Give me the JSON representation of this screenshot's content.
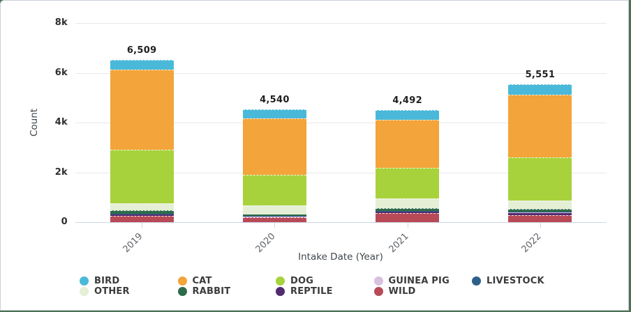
{
  "chart_data": {
    "type": "bar",
    "stacked": true,
    "title": "",
    "xlabel": "Intake Date (Year)",
    "ylabel": "Count",
    "categories": [
      "2019",
      "2020",
      "2021",
      "2022"
    ],
    "totals": [
      6509,
      4540,
      4492,
      5551
    ],
    "totals_display": [
      "6,509",
      "4,540",
      "4,492",
      "5,551"
    ],
    "ylim": [
      0,
      8000
    ],
    "yticks": [
      {
        "label": "8k",
        "value": 8000
      },
      {
        "label": "6k",
        "value": 6000
      },
      {
        "label": "4k",
        "value": 4000
      },
      {
        "label": "2k",
        "value": 2000
      },
      {
        "label": "0",
        "value": 0
      }
    ],
    "grid": true,
    "legend_position": "bottom",
    "stack_order_bottom_to_top": [
      "WILD",
      "REPTILE",
      "GUINEA PIG",
      "LIVESTOCK",
      "RABBIT",
      "OTHER",
      "DOG",
      "CAT",
      "BIRD"
    ],
    "series": [
      {
        "name": "BIRD",
        "color": "#4ab9d9",
        "values": [
          374,
          367,
          392,
          446
        ]
      },
      {
        "name": "CAT",
        "color": "#f3a43a",
        "values": [
          3220,
          2258,
          1905,
          2509
        ]
      },
      {
        "name": "DOG",
        "color": "#a8d23c",
        "values": [
          2155,
          1250,
          1255,
          1735
        ]
      },
      {
        "name": "GUINEA PIG",
        "color": "#d7c0e0",
        "values": [
          20,
          15,
          20,
          55
        ]
      },
      {
        "name": "LIVESTOCK",
        "color": "#2e5f8a",
        "values": [
          10,
          5,
          5,
          6
        ]
      },
      {
        "name": "OTHER",
        "color": "#e4efd6",
        "values": [
          280,
          365,
          385,
          325
        ]
      },
      {
        "name": "RABBIT",
        "color": "#2e6b4a",
        "values": [
          140,
          60,
          105,
          125
        ]
      },
      {
        "name": "REPTILE",
        "color": "#512b6e",
        "values": [
          50,
          30,
          55,
          60
        ]
      },
      {
        "name": "WILD",
        "color": "#b84a58",
        "values": [
          260,
          190,
          370,
          290
        ]
      }
    ]
  }
}
